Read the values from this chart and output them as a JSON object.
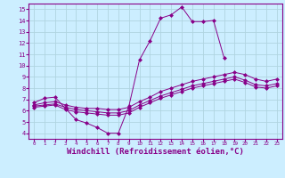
{
  "background_color": "#cceeff",
  "grid_color": "#b0d4e0",
  "line_color": "#880088",
  "marker_color": "#880088",
  "xlabel": "Windchill (Refroidissement éolien,°C)",
  "xlabel_fontsize": 6.5,
  "xlim": [
    -0.5,
    23.5
  ],
  "ylim": [
    3.5,
    15.5
  ],
  "xticks": [
    0,
    1,
    2,
    3,
    4,
    5,
    6,
    7,
    8,
    9,
    10,
    11,
    12,
    13,
    14,
    15,
    16,
    17,
    18,
    19,
    20,
    21,
    22,
    23
  ],
  "yticks": [
    4,
    5,
    6,
    7,
    8,
    9,
    10,
    11,
    12,
    13,
    14,
    15
  ],
  "line1_x": [
    0,
    1,
    2,
    3,
    4,
    5,
    6,
    7,
    8,
    9,
    10,
    11,
    12,
    13,
    14,
    15,
    16,
    17,
    18
  ],
  "line1_y": [
    6.7,
    7.1,
    7.2,
    6.2,
    5.2,
    4.9,
    4.5,
    4.0,
    4.0,
    6.4,
    10.5,
    12.2,
    14.2,
    14.5,
    15.2,
    13.9,
    13.9,
    14.0,
    10.7
  ],
  "line2_x": [
    0,
    1,
    2,
    3,
    4,
    5,
    6,
    7,
    8,
    9,
    10,
    11,
    12,
    13,
    14,
    15,
    16,
    17,
    18,
    19,
    20,
    21,
    22,
    23
  ],
  "line2_y": [
    6.5,
    6.7,
    6.8,
    6.5,
    6.3,
    6.2,
    6.2,
    6.1,
    6.1,
    6.3,
    6.8,
    7.2,
    7.7,
    8.0,
    8.3,
    8.6,
    8.8,
    9.0,
    9.2,
    9.4,
    9.2,
    8.8,
    8.6,
    8.8
  ],
  "line3_x": [
    0,
    1,
    2,
    3,
    4,
    5,
    6,
    7,
    8,
    9,
    10,
    11,
    12,
    13,
    14,
    15,
    16,
    17,
    18,
    19,
    20,
    21,
    22,
    23
  ],
  "line3_y": [
    6.4,
    6.5,
    6.6,
    6.3,
    6.1,
    6.0,
    5.9,
    5.8,
    5.8,
    6.0,
    6.5,
    6.9,
    7.3,
    7.6,
    7.9,
    8.2,
    8.4,
    8.6,
    8.8,
    9.0,
    8.7,
    8.3,
    8.2,
    8.4
  ],
  "line4_x": [
    0,
    1,
    2,
    3,
    4,
    5,
    6,
    7,
    8,
    9,
    10,
    11,
    12,
    13,
    14,
    15,
    16,
    17,
    18,
    19,
    20,
    21,
    22,
    23
  ],
  "line4_y": [
    6.3,
    6.4,
    6.5,
    6.1,
    5.9,
    5.8,
    5.7,
    5.6,
    5.6,
    5.8,
    6.3,
    6.7,
    7.1,
    7.4,
    7.7,
    8.0,
    8.2,
    8.4,
    8.6,
    8.8,
    8.5,
    8.1,
    8.0,
    8.2
  ]
}
